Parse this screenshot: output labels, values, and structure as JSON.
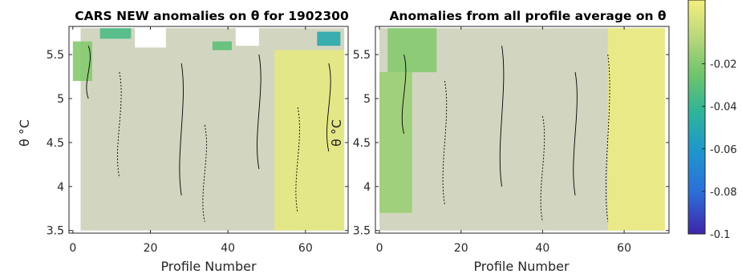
{
  "chart_data": [
    {
      "type": "heatmap",
      "title": "CARS NEW anomalies on θ for 1902300",
      "xlabel": "Profile Number",
      "ylabel": "θ °C",
      "xlim": [
        -1,
        71
      ],
      "ylim": [
        3.47,
        5.82
      ],
      "xticks": [
        0,
        20,
        40,
        60
      ],
      "yticks": [
        3.5,
        4,
        4.5,
        5,
        5.5
      ],
      "ytick_labels": [
        "3.5",
        "4",
        "4.5",
        "5",
        "5.5"
      ],
      "background_value": -0.002,
      "features": [
        {
          "kind": "green_patch",
          "x": [
            7,
            15
          ],
          "y": [
            5.68,
            5.8
          ],
          "value": -0.035
        },
        {
          "kind": "green_patch",
          "x": [
            63,
            69
          ],
          "y": [
            5.6,
            5.76
          ],
          "value": -0.05
        },
        {
          "kind": "green_patch",
          "x": [
            36,
            41
          ],
          "y": [
            5.55,
            5.65
          ],
          "value": -0.03
        },
        {
          "kind": "green_patch",
          "x": [
            0,
            5
          ],
          "y": [
            5.2,
            5.65
          ],
          "value": -0.02
        },
        {
          "kind": "yellow_band",
          "x": [
            52,
            70
          ],
          "y": [
            3.5,
            5.55
          ],
          "value": 0.006
        }
      ]
    },
    {
      "type": "heatmap",
      "title": "Anomalies from all profile average on θ",
      "xlabel": "Profile Number",
      "ylabel": "θ °C",
      "xlim": [
        -1,
        71
      ],
      "ylim": [
        3.47,
        5.82
      ],
      "xticks": [
        0,
        20,
        40,
        60
      ],
      "yticks": [
        3.5,
        4,
        4.5,
        5,
        5.5
      ],
      "ytick_labels": [
        "3.5",
        "4",
        "4.5",
        "5",
        "5.5"
      ],
      "background_value": -0.002,
      "features": [
        {
          "kind": "green_patch",
          "x": [
            2,
            14
          ],
          "y": [
            5.3,
            5.8
          ],
          "value": -0.02
        },
        {
          "kind": "green_patch",
          "x": [
            0,
            8
          ],
          "y": [
            3.7,
            5.3
          ],
          "value": -0.015
        },
        {
          "kind": "yellow_band",
          "x": [
            56,
            70
          ],
          "y": [
            3.5,
            5.8
          ],
          "value": 0.008
        }
      ]
    }
  ],
  "colorbar": {
    "ticks": [
      -0.02,
      -0.04,
      -0.06,
      -0.08,
      -0.1
    ],
    "tick_labels": [
      "-0.02",
      "-0.04",
      "-0.06",
      "-0.08",
      "-0.1"
    ],
    "range": [
      -0.1,
      0.01
    ],
    "colormap": "parula-like"
  },
  "colors": {
    "missing": "#d4d4d4",
    "axis": "#262626"
  }
}
